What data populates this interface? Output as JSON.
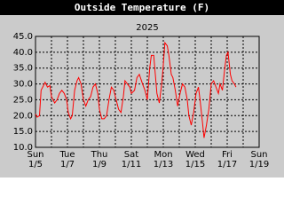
{
  "chart_data": {
    "type": "line",
    "title": "Outside Temperature (F)",
    "subtitle": "2025",
    "x": [
      0,
      0.1,
      0.25,
      0.35,
      0.5,
      0.6,
      0.75,
      0.9,
      1.0,
      1.2,
      1.35,
      1.5,
      1.65,
      1.8,
      1.95,
      2.05,
      2.2,
      2.3,
      2.45,
      2.6,
      2.7,
      2.85,
      3.0,
      3.15,
      3.3,
      3.45,
      3.6,
      3.75,
      3.9,
      4.0,
      4.15,
      4.3,
      4.45,
      4.6,
      4.75,
      4.9,
      5.0,
      5.2,
      5.35,
      5.5,
      5.6,
      5.75,
      5.9,
      6.0,
      6.2,
      6.35,
      6.5,
      6.7,
      6.85,
      7.0,
      7.15,
      7.25,
      7.4,
      7.5,
      7.6,
      7.75,
      7.9,
      8.0,
      8.1,
      8.25,
      8.35,
      8.5,
      8.6,
      8.75,
      8.9,
      9.05,
      9.2,
      9.35,
      9.5,
      9.6,
      9.75,
      9.9,
      10.05,
      10.2,
      10.3,
      10.45,
      10.55,
      10.7,
      10.85,
      11.0,
      11.15,
      11.3,
      11.45,
      11.55,
      11.7,
      11.85,
      11.95,
      12.05,
      12.2,
      12.3,
      12.45,
      12.55
    ],
    "series": [
      {
        "name": "Outside Temperature",
        "color": "#ff0000",
        "values": [
          20.5,
          19.5,
          20,
          28,
          29.5,
          30.5,
          29,
          29.5,
          26,
          24,
          25,
          27,
          28,
          27,
          25,
          21,
          19,
          20,
          28,
          31,
          32,
          30,
          25,
          23,
          25,
          26,
          29,
          30,
          27,
          22,
          19,
          19,
          20,
          25,
          29,
          28,
          26,
          22,
          21,
          26,
          31,
          30,
          29,
          27,
          28,
          32,
          33,
          30,
          28,
          25,
          35,
          39,
          39,
          33,
          27,
          24,
          30,
          36,
          43,
          42,
          39,
          33,
          32,
          28,
          23,
          27,
          30,
          29,
          25,
          20,
          17,
          21,
          27,
          29,
          25,
          18,
          13,
          17,
          22,
          30,
          31,
          29,
          27,
          30,
          28,
          35,
          39,
          40,
          33,
          31,
          30,
          29
        ]
      }
    ],
    "xlim": [
      0,
      14
    ],
    "xticks": [
      {
        "value": 0,
        "label": "Sun 1/5"
      },
      {
        "value": 1,
        "label": null
      },
      {
        "value": 2,
        "label": "Tue 1/7"
      },
      {
        "value": 3,
        "label": null
      },
      {
        "value": 4,
        "label": "Thu 1/9"
      },
      {
        "value": 5,
        "label": null
      },
      {
        "value": 6,
        "label": "Sat 1/11"
      },
      {
        "value": 7,
        "label": null
      },
      {
        "value": 8,
        "label": "Mon 1/13"
      },
      {
        "value": 9,
        "label": null
      },
      {
        "value": 10,
        "label": "Wed 1/15"
      },
      {
        "value": 11,
        "label": null
      },
      {
        "value": 12,
        "label": "Fri 1/17"
      },
      {
        "value": 13,
        "label": null
      },
      {
        "value": 14,
        "label": "Sun 1/19"
      }
    ],
    "ylim": [
      10,
      45
    ],
    "yticks": [
      {
        "value": 10,
        "label": "10.0"
      },
      {
        "value": 15,
        "label": "15.0"
      },
      {
        "value": 20,
        "label": "20.0"
      },
      {
        "value": 25,
        "label": "25.0"
      },
      {
        "value": 30,
        "label": "30.0"
      },
      {
        "value": 35,
        "label": "35.0"
      },
      {
        "value": 40,
        "label": "40.0"
      },
      {
        "value": 45,
        "label": "45.0"
      }
    ],
    "grid": true
  }
}
